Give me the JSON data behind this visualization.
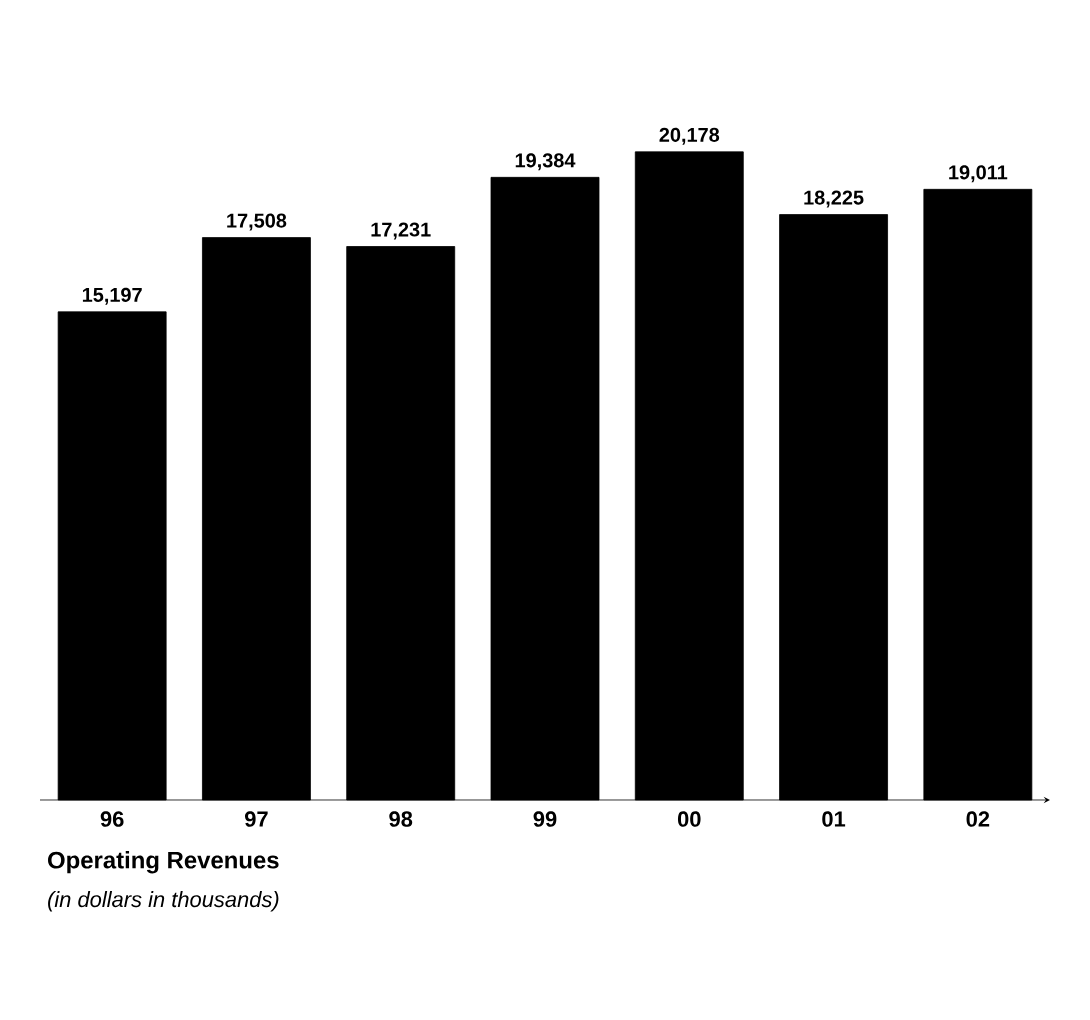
{
  "chart_data": {
    "type": "bar",
    "title": "Operating Revenues",
    "subtitle": "(in dollars in thousands)",
    "categories": [
      "96",
      "97",
      "98",
      "99",
      "00",
      "01",
      "02"
    ],
    "values": [
      15197,
      17508,
      17231,
      19384,
      20178,
      18225,
      19011
    ],
    "value_labels": [
      "15,197",
      "17,508",
      "17,231",
      "19,384",
      "20,178",
      "18,225",
      "19,011"
    ],
    "color": "#000000",
    "tick_labels": "x"
  }
}
